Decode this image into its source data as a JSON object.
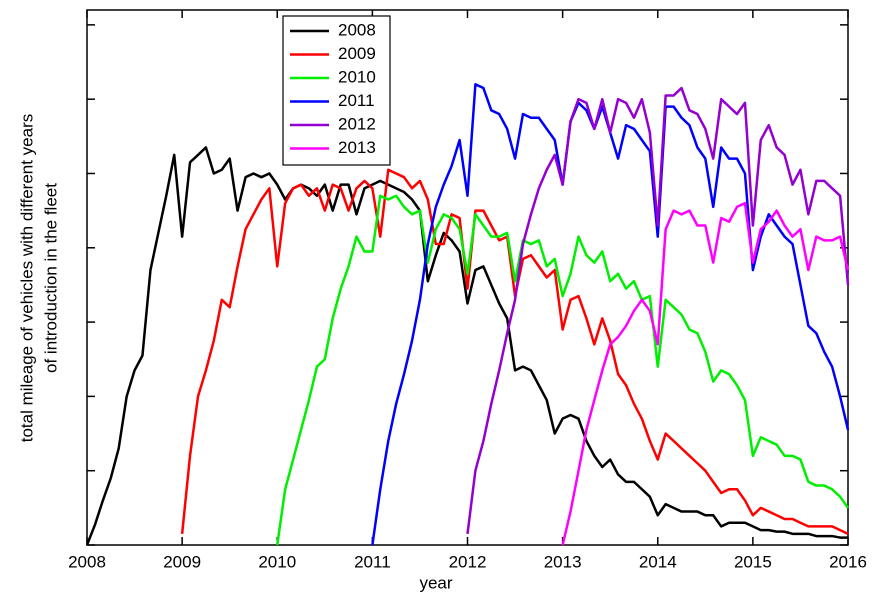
{
  "chart_data": {
    "type": "line",
    "xlabel": "year",
    "ylabel": [
      "total mileage of vehicles with different years",
      "of introduction in the fleet"
    ],
    "x": [
      2008,
      2008.083,
      2008.167,
      2008.25,
      2008.333,
      2008.417,
      2008.5,
      2008.583,
      2008.667,
      2008.75,
      2008.833,
      2008.917,
      2009,
      2009.083,
      2009.167,
      2009.25,
      2009.333,
      2009.417,
      2009.5,
      2009.583,
      2009.667,
      2009.75,
      2009.833,
      2009.917,
      2010,
      2010.083,
      2010.167,
      2010.25,
      2010.333,
      2010.417,
      2010.5,
      2010.583,
      2010.667,
      2010.75,
      2010.833,
      2010.917,
      2011,
      2011.083,
      2011.167,
      2011.25,
      2011.333,
      2011.417,
      2011.5,
      2011.583,
      2011.667,
      2011.75,
      2011.833,
      2011.917,
      2012,
      2012.083,
      2012.167,
      2012.25,
      2012.333,
      2012.417,
      2012.5,
      2012.583,
      2012.667,
      2012.75,
      2012.833,
      2012.917,
      2013,
      2013.083,
      2013.167,
      2013.25,
      2013.333,
      2013.417,
      2013.5,
      2013.583,
      2013.667,
      2013.75,
      2013.833,
      2013.917,
      2014,
      2014.083,
      2014.167,
      2014.25,
      2014.333,
      2014.417,
      2014.5,
      2014.583,
      2014.667,
      2014.75,
      2014.833,
      2014.917,
      2015,
      2015.083,
      2015.167,
      2015.25,
      2015.333,
      2015.417,
      2015.5,
      2015.583,
      2015.667,
      2015.75,
      2015.833,
      2015.917,
      2016
    ],
    "series": [
      {
        "name": "2008",
        "color": "#000000",
        "values": [
          0,
          0.27,
          0.6,
          0.9,
          1.3,
          2.0,
          2.35,
          2.55,
          3.7,
          4.2,
          4.7,
          5.25,
          4.15,
          5.15,
          5.25,
          5.35,
          5.0,
          5.05,
          5.2,
          4.5,
          4.95,
          5.0,
          4.95,
          5.0,
          4.85,
          4.65,
          4.8,
          4.85,
          4.8,
          4.7,
          4.85,
          4.5,
          4.85,
          4.85,
          4.45,
          4.8,
          4.85,
          4.9,
          4.85,
          4.8,
          4.75,
          4.65,
          4.5,
          3.55,
          3.9,
          4.2,
          4.1,
          3.95,
          3.25,
          3.7,
          3.75,
          3.5,
          3.25,
          3.05,
          2.35,
          2.4,
          2.35,
          2.15,
          1.95,
          1.5,
          1.7,
          1.75,
          1.7,
          1.4,
          1.2,
          1.05,
          1.15,
          0.95,
          0.85,
          0.85,
          0.75,
          0.65,
          0.4,
          0.55,
          0.5,
          0.45,
          0.45,
          0.45,
          0.4,
          0.4,
          0.25,
          0.3,
          0.3,
          0.3,
          0.25,
          0.2,
          0.2,
          0.18,
          0.18,
          0.15,
          0.15,
          0.15,
          0.12,
          0.12,
          0.12,
          0.1,
          0.1
        ]
      },
      {
        "name": "2009",
        "color": "#ff0000",
        "values": [
          null,
          null,
          null,
          null,
          null,
          null,
          null,
          null,
          null,
          null,
          null,
          null,
          0.15,
          1.2,
          2.0,
          2.35,
          2.75,
          3.3,
          3.2,
          3.75,
          4.25,
          4.45,
          4.65,
          4.8,
          3.75,
          4.6,
          4.8,
          4.85,
          4.7,
          4.8,
          4.5,
          4.85,
          4.8,
          4.5,
          4.8,
          4.9,
          4.8,
          4.15,
          5.05,
          5.0,
          4.95,
          4.8,
          4.9,
          4.65,
          4.05,
          4.05,
          4.45,
          4.4,
          3.45,
          4.5,
          4.5,
          4.3,
          4.1,
          4.15,
          3.35,
          3.85,
          3.9,
          3.75,
          3.6,
          3.7,
          2.9,
          3.3,
          3.35,
          3.05,
          2.7,
          3.05,
          2.75,
          2.3,
          2.15,
          1.9,
          1.7,
          1.4,
          1.15,
          1.5,
          1.4,
          1.3,
          1.2,
          1.1,
          1.0,
          0.85,
          0.7,
          0.75,
          0.75,
          0.6,
          0.4,
          0.5,
          0.45,
          0.4,
          0.35,
          0.35,
          0.3,
          0.25,
          0.25,
          0.25,
          0.25,
          0.2,
          0.15
        ]
      },
      {
        "name": "2010",
        "color": "#00ee00",
        "values": [
          null,
          null,
          null,
          null,
          null,
          null,
          null,
          null,
          null,
          null,
          null,
          null,
          null,
          null,
          null,
          null,
          null,
          null,
          null,
          null,
          null,
          null,
          null,
          null,
          0,
          0.75,
          1.15,
          1.55,
          1.95,
          2.4,
          2.5,
          3.05,
          3.45,
          3.75,
          4.15,
          3.95,
          3.95,
          4.7,
          4.65,
          4.7,
          4.55,
          4.45,
          4.5,
          3.8,
          4.25,
          4.45,
          4.4,
          4.25,
          3.65,
          4.45,
          4.3,
          4.15,
          4.15,
          4.2,
          3.55,
          4.1,
          4.05,
          4.1,
          3.75,
          3.85,
          3.35,
          3.65,
          4.15,
          3.9,
          3.8,
          3.95,
          3.55,
          3.65,
          3.45,
          3.55,
          3.3,
          3.35,
          2.4,
          3.3,
          3.2,
          3.1,
          2.9,
          2.85,
          2.6,
          2.2,
          2.35,
          2.3,
          2.15,
          1.95,
          1.2,
          1.45,
          1.4,
          1.35,
          1.2,
          1.2,
          1.15,
          0.85,
          0.8,
          0.8,
          0.75,
          0.65,
          0.5
        ]
      },
      {
        "name": "2011",
        "color": "#0000ff",
        "values": [
          null,
          null,
          null,
          null,
          null,
          null,
          null,
          null,
          null,
          null,
          null,
          null,
          null,
          null,
          null,
          null,
          null,
          null,
          null,
          null,
          null,
          null,
          null,
          null,
          null,
          null,
          null,
          null,
          null,
          null,
          null,
          null,
          null,
          null,
          null,
          null,
          0,
          0.75,
          1.4,
          1.9,
          2.3,
          2.75,
          3.3,
          4.05,
          4.55,
          4.85,
          5.1,
          5.45,
          4.7,
          6.2,
          6.15,
          5.85,
          5.8,
          5.6,
          5.2,
          5.8,
          5.75,
          5.75,
          5.6,
          5.45,
          4.85,
          5.7,
          5.95,
          5.85,
          5.6,
          5.9,
          5.55,
          5.2,
          5.65,
          5.6,
          5.45,
          5.3,
          4.15,
          5.9,
          5.9,
          5.75,
          5.65,
          5.35,
          5.2,
          4.55,
          5.35,
          5.2,
          5.2,
          5.0,
          3.7,
          4.15,
          4.45,
          4.3,
          4.15,
          4.05,
          3.5,
          2.95,
          2.85,
          2.6,
          2.4,
          2.0,
          1.55
        ]
      },
      {
        "name": "2012",
        "color": "#9400d3",
        "values": [
          null,
          null,
          null,
          null,
          null,
          null,
          null,
          null,
          null,
          null,
          null,
          null,
          null,
          null,
          null,
          null,
          null,
          null,
          null,
          null,
          null,
          null,
          null,
          null,
          null,
          null,
          null,
          null,
          null,
          null,
          null,
          null,
          null,
          null,
          null,
          null,
          null,
          null,
          null,
          null,
          null,
          null,
          null,
          null,
          null,
          null,
          null,
          null,
          0.15,
          1.0,
          1.4,
          1.9,
          2.35,
          2.85,
          3.3,
          4.05,
          4.45,
          4.8,
          5.05,
          5.25,
          4.85,
          5.7,
          6.0,
          5.95,
          5.6,
          6.0,
          5.55,
          6.0,
          5.95,
          5.75,
          6.0,
          5.55,
          4.3,
          6.05,
          6.05,
          6.15,
          5.85,
          5.8,
          5.6,
          5.2,
          6.0,
          5.9,
          5.8,
          5.95,
          4.3,
          5.45,
          5.65,
          5.35,
          5.25,
          4.85,
          5.05,
          4.45,
          4.9,
          4.9,
          4.8,
          4.7,
          3.5
        ]
      },
      {
        "name": "2013",
        "color": "#ff00ff",
        "values": [
          null,
          null,
          null,
          null,
          null,
          null,
          null,
          null,
          null,
          null,
          null,
          null,
          null,
          null,
          null,
          null,
          null,
          null,
          null,
          null,
          null,
          null,
          null,
          null,
          null,
          null,
          null,
          null,
          null,
          null,
          null,
          null,
          null,
          null,
          null,
          null,
          null,
          null,
          null,
          null,
          null,
          null,
          null,
          null,
          null,
          null,
          null,
          null,
          null,
          null,
          null,
          null,
          null,
          null,
          null,
          null,
          null,
          null,
          null,
          null,
          0,
          0.45,
          1.0,
          1.55,
          1.95,
          2.35,
          2.7,
          2.8,
          2.95,
          3.15,
          3.3,
          3.15,
          2.7,
          4.25,
          4.5,
          4.45,
          4.5,
          4.3,
          4.3,
          3.8,
          4.4,
          4.35,
          4.55,
          4.6,
          3.8,
          4.25,
          4.35,
          4.5,
          4.3,
          4.15,
          4.25,
          3.7,
          4.15,
          4.1,
          4.1,
          4.15,
          3.7
        ]
      }
    ],
    "xlim": [
      2008,
      2016
    ],
    "xticks": [
      2008,
      2009,
      2010,
      2011,
      2012,
      2013,
      2014,
      2015,
      2016
    ],
    "ylim": [
      0,
      7.2
    ],
    "yticks": [
      0,
      1,
      2,
      3,
      4,
      5,
      6,
      7
    ],
    "legend_loc": "upper left"
  }
}
